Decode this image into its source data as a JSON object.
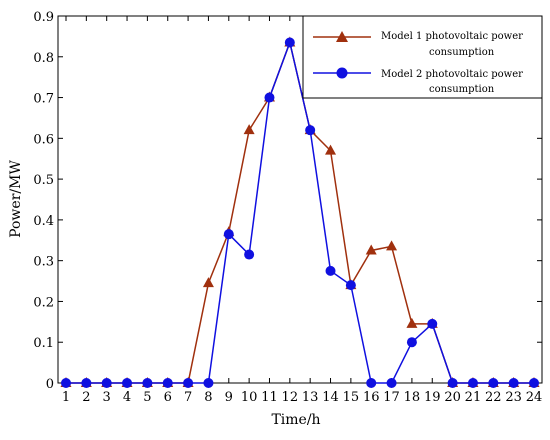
{
  "chart_data": {
    "type": "line",
    "title": "",
    "xlabel": "Time/h",
    "ylabel": "Power/MW",
    "x": [
      1,
      2,
      3,
      4,
      5,
      6,
      7,
      8,
      9,
      10,
      11,
      12,
      13,
      14,
      15,
      16,
      17,
      18,
      19,
      20,
      21,
      22,
      23,
      24
    ],
    "xlim": [
      1,
      24
    ],
    "ylim": [
      0,
      0.9
    ],
    "yticks": [
      "0",
      "0.1",
      "0.2",
      "0.3",
      "0.4",
      "0.5",
      "0.6",
      "0.7",
      "0.8",
      "0.9"
    ],
    "grid": false,
    "legend_position": "top-right",
    "series": [
      {
        "name_line1": "Model 1  photovoltaic power",
        "name_line2": "consumption",
        "marker": "triangle",
        "color": "#a0300e",
        "values": [
          0,
          0,
          0,
          0,
          0,
          0,
          0,
          0.245,
          0.37,
          0.62,
          0.7,
          0.835,
          0.62,
          0.57,
          0.24,
          0.325,
          0.335,
          0.145,
          0.145,
          0,
          0,
          0,
          0,
          0
        ]
      },
      {
        "name_line1": "Model 2  photovoltaic power",
        "name_line2": "consumption",
        "marker": "circle",
        "color": "#1010e0",
        "values": [
          0,
          0,
          0,
          0,
          0,
          0,
          0,
          0,
          0.365,
          0.315,
          0.7,
          0.835,
          0.62,
          0.275,
          0.24,
          0,
          0,
          0.1,
          0.145,
          0,
          0,
          0,
          0,
          0
        ]
      }
    ]
  }
}
